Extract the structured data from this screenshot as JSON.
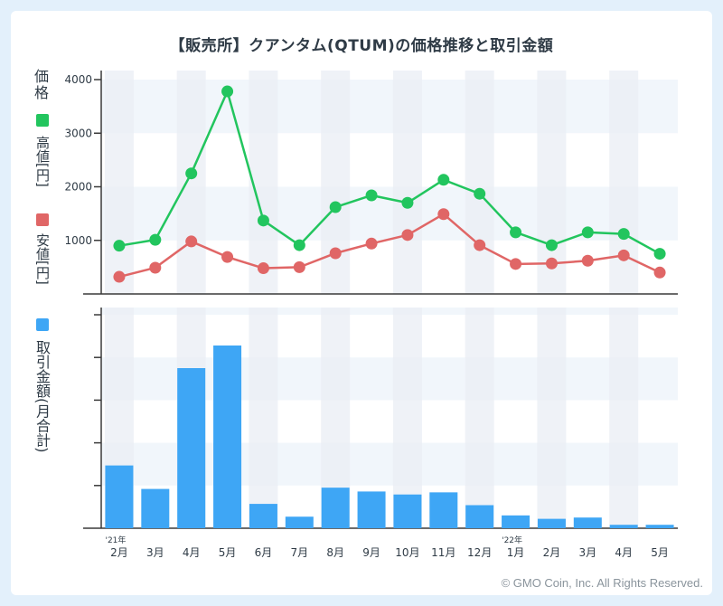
{
  "title": "【販売所】クアンタム(QTUM)の価格推移と取引金額",
  "copyright": "© GMO Coin, Inc. All Rights Reserved.",
  "colors": {
    "high": "#22c55e",
    "low": "#e06666",
    "volume": "#3ea6f5",
    "axis": "#3a3a3a",
    "stripe": "#e9eef4",
    "band": "#f1f6fb"
  },
  "price_axis_label": {
    "title": "価格",
    "high_label": "高値[円]",
    "low_label": "安値[円]"
  },
  "volume_axis_label": "取引金額(月合計)",
  "chart_data": [
    {
      "type": "line",
      "categories": [
        "2月",
        "3月",
        "4月",
        "5月",
        "6月",
        "7月",
        "8月",
        "9月",
        "10月",
        "11月",
        "12月",
        "1月",
        "2月",
        "3月",
        "4月",
        "5月"
      ],
      "year_marks": [
        {
          "index": 0,
          "label": "'21年"
        },
        {
          "index": 11,
          "label": "'22年"
        }
      ],
      "series": [
        {
          "name": "高値[円]",
          "values": [
            900,
            1010,
            2250,
            3780,
            1370,
            910,
            1620,
            1840,
            1700,
            2130,
            1870,
            1150,
            910,
            1150,
            1120,
            750
          ]
        },
        {
          "name": "安値[円]",
          "values": [
            320,
            490,
            980,
            690,
            480,
            500,
            760,
            940,
            1100,
            1490,
            910,
            560,
            570,
            620,
            720,
            400
          ]
        }
      ],
      "yticks": [
        1000,
        2000,
        3000,
        4000
      ],
      "ylim": [
        0,
        4000
      ]
    },
    {
      "type": "bar",
      "categories": [
        "2月",
        "3月",
        "4月",
        "5月",
        "6月",
        "7月",
        "8月",
        "9月",
        "10月",
        "11月",
        "12月",
        "1月",
        "2月",
        "3月",
        "4月",
        "5月"
      ],
      "values": [
        14.7,
        9.2,
        37.5,
        42.8,
        5.7,
        2.7,
        9.5,
        8.6,
        7.9,
        8.4,
        5.4,
        3.0,
        2.2,
        2.5,
        0.8,
        0.8
      ],
      "ylim": [
        0,
        50
      ],
      "y_tick_count": 5,
      "ytick_labels_shown": false
    }
  ]
}
